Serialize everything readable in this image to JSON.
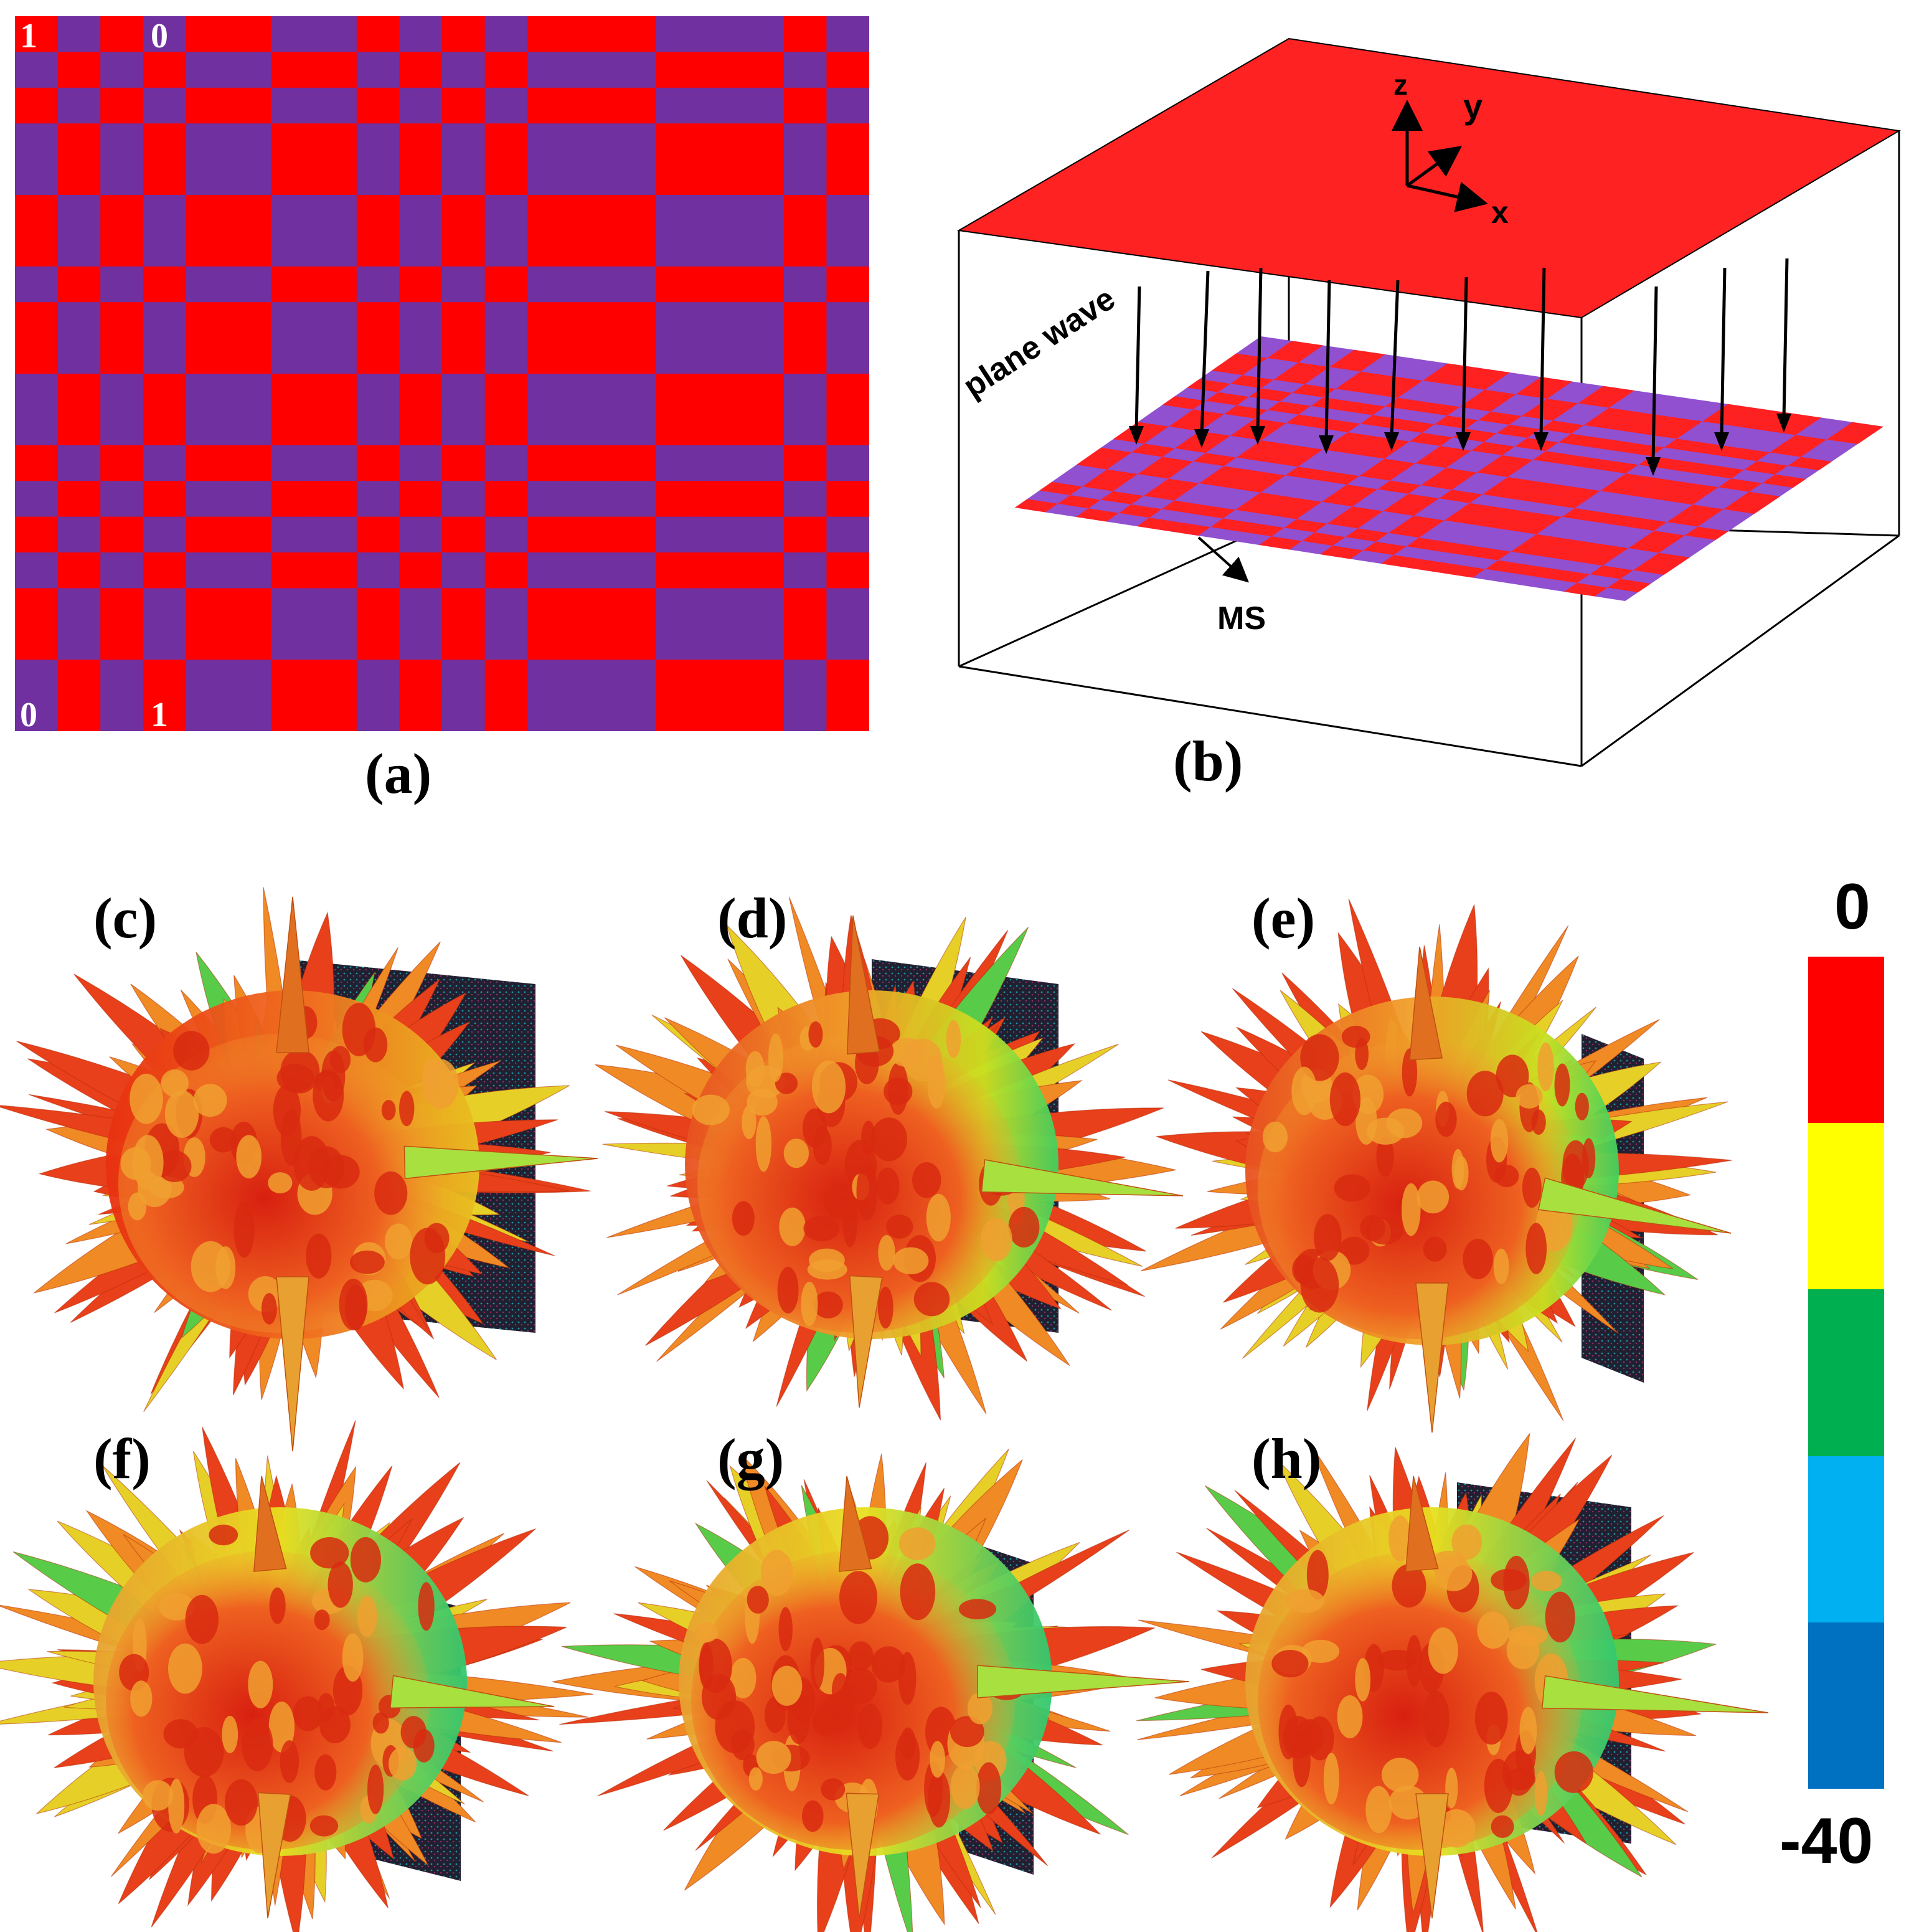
{
  "panel_a": {
    "caption": "(a)",
    "corner_labels": {
      "top_left_1": "1",
      "top_left_0": "0",
      "bottom_left_0": "0",
      "bottom_left_1": "1"
    },
    "colors": {
      "state_1": "#ff0000",
      "state_0": "#7030a0"
    },
    "col_code": [
      1,
      0,
      1,
      0,
      1,
      1,
      0,
      0,
      1,
      0,
      1,
      0,
      1,
      1,
      1,
      0,
      0,
      0,
      1,
      0
    ],
    "row_code": [
      1,
      0,
      1,
      0,
      0,
      1,
      1,
      0,
      1,
      1,
      0,
      0,
      1,
      0,
      1,
      0,
      1,
      1,
      0,
      0
    ]
  },
  "panel_b": {
    "caption": "(b)",
    "axis_labels": {
      "z": "z",
      "y": "y",
      "x": "x"
    },
    "plane_wave_label": "plane wave",
    "ms_label": "MS",
    "colors": {
      "top_plane": "#ff2222",
      "ms_red": "#ff2020",
      "ms_purple": "#9050d0"
    }
  },
  "patterns": [
    {
      "caption": "(c)",
      "icon": "far-field-3d-pattern"
    },
    {
      "caption": "(d)",
      "icon": "far-field-3d-pattern"
    },
    {
      "caption": "(e)",
      "icon": "far-field-3d-pattern"
    },
    {
      "caption": "(f)",
      "icon": "far-field-3d-pattern"
    },
    {
      "caption": "(g)",
      "icon": "far-field-3d-pattern"
    },
    {
      "caption": "(h)",
      "icon": "far-field-3d-pattern"
    }
  ],
  "colorbar": {
    "max_label": "0",
    "min_label": "-40",
    "colors": [
      "#ff0000",
      "#ffff00",
      "#00b050",
      "#00b0f0",
      "#0070c0"
    ]
  }
}
